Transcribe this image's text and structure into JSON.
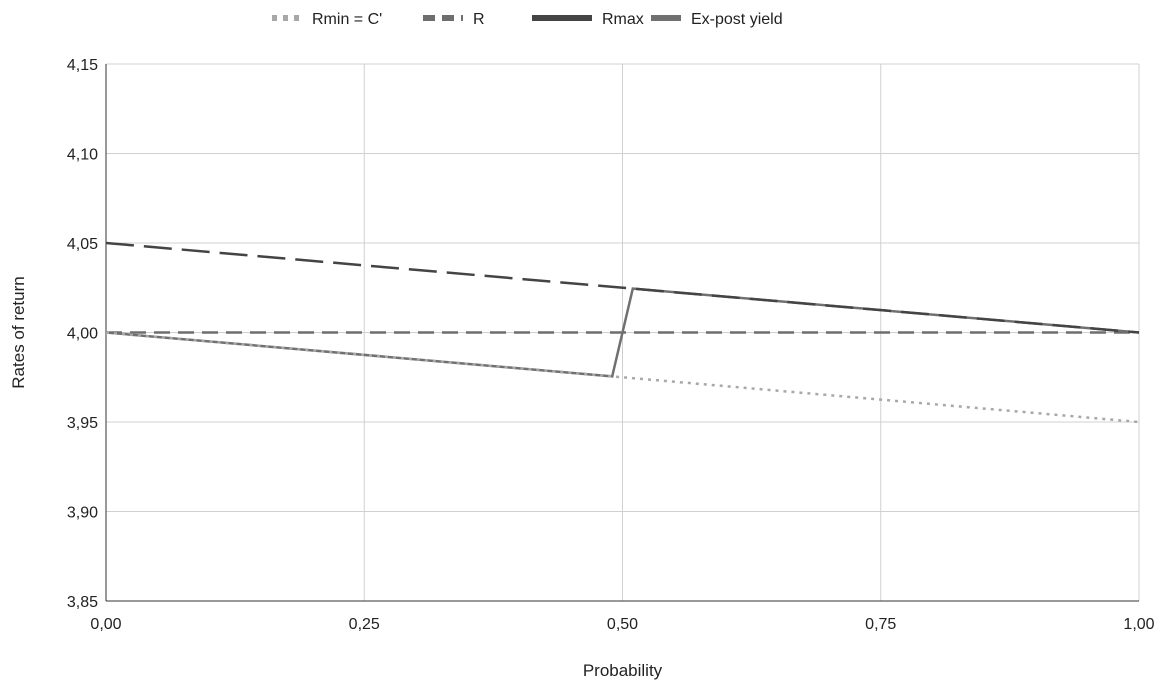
{
  "chart_data": {
    "type": "line",
    "xlabel": "Probability",
    "ylabel": "Rates of return",
    "xlim": [
      0,
      1
    ],
    "ylim": [
      3.85,
      4.15
    ],
    "x_ticks": [
      "0,00",
      "0,25",
      "0,50",
      "0,75",
      "1,00"
    ],
    "y_ticks": [
      "4,15",
      "4,10",
      "4,05",
      "4,00",
      "3,95",
      "3,90",
      "3,85"
    ],
    "grid": true,
    "legend_position": "top",
    "series": [
      {
        "name": "Rmin = C'",
        "style": "dotted",
        "color": "#a8a8a8",
        "x": [
          0,
          1
        ],
        "y": [
          4.0,
          3.95
        ]
      },
      {
        "name": "R",
        "style": "dashed",
        "color": "#6e6e6e",
        "x": [
          0,
          1
        ],
        "y": [
          4.0,
          4.0
        ]
      },
      {
        "name": "Rmax",
        "style": "dashed-long",
        "color": "#444444",
        "x": [
          0,
          1
        ],
        "y": [
          4.05,
          4.0
        ]
      },
      {
        "name": "Ex-post yield",
        "style": "solid",
        "color": "#707070",
        "x": [
          0,
          0.49,
          0.51,
          1
        ],
        "y": [
          4.0,
          3.9755,
          4.0245,
          4.0
        ]
      }
    ]
  }
}
